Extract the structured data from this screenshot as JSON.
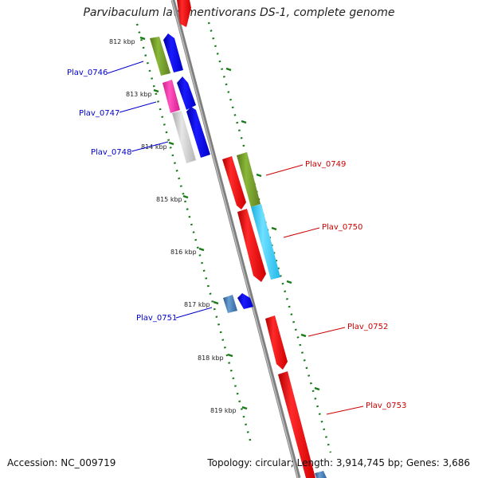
{
  "title": "Parvibaculum lavamentivorans DS-1, complete genome",
  "footer": {
    "accession": "Accession: NC_009719",
    "summary": "Topology: circular; Length: 3,914,745 bp; Genes: 3,686"
  },
  "ticks": [
    "812 kbp",
    "813 kbp",
    "814 kbp",
    "815 kbp",
    "816 kbp",
    "817 kbp",
    "818 kbp",
    "819 kbp"
  ],
  "gene_labels": [
    "Plav_0746",
    "Plav_0747",
    "Plav_0748",
    "Plav_0749",
    "Plav_0750",
    "Plav_0751",
    "Plav_0752",
    "Plav_0753"
  ],
  "colors": {
    "reverse_label": "#0000cc",
    "forward_label": "#cc0000",
    "tick_green": "#1a7a1a",
    "backbone": "#888888"
  }
}
